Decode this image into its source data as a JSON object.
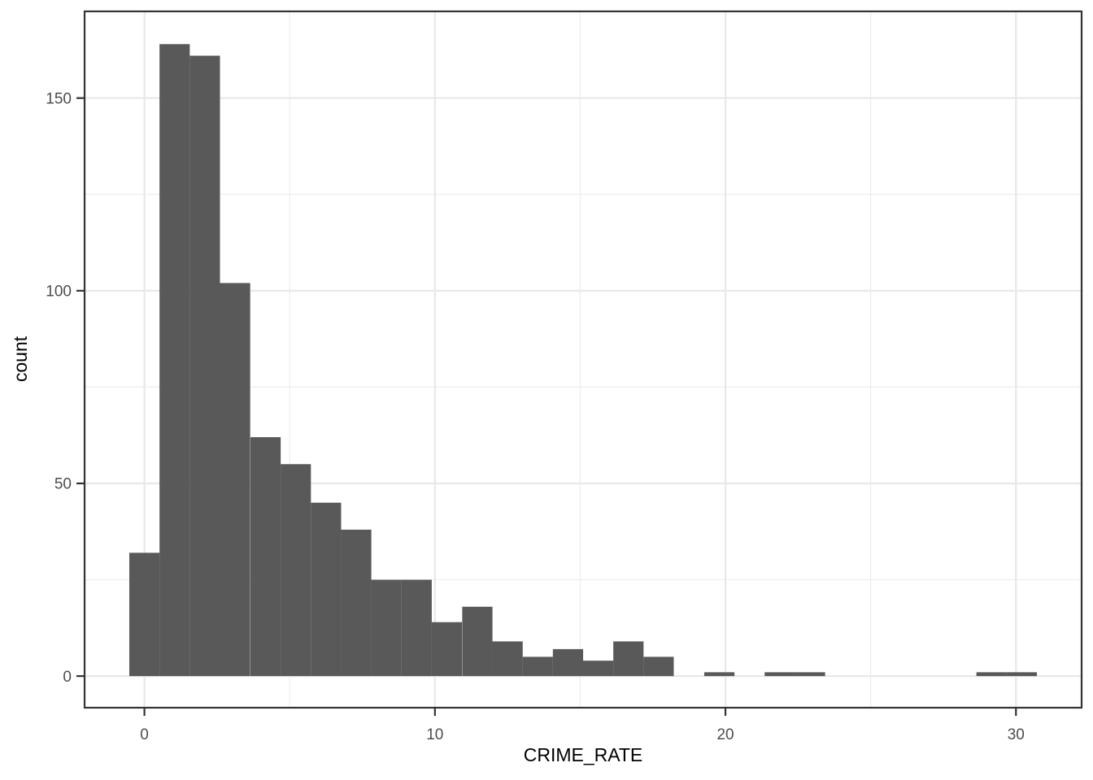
{
  "chart_data": {
    "type": "bar",
    "subtype": "histogram",
    "title": "",
    "xlabel": "CRIME_RATE",
    "ylabel": "count",
    "legend": "none",
    "grid": "major+minor",
    "bin_width": 1.0414,
    "bin_centers": [
      0.0,
      1.04,
      2.08,
      3.12,
      4.17,
      5.21,
      6.25,
      7.29,
      8.33,
      9.37,
      10.41,
      11.46,
      12.5,
      13.54,
      14.58,
      15.62,
      16.66,
      17.7,
      18.75,
      19.79,
      20.83,
      21.87,
      22.91,
      23.95,
      25.0,
      26.04,
      27.08,
      28.12,
      29.16,
      30.2
    ],
    "counts": [
      32,
      164,
      161,
      102,
      62,
      55,
      45,
      38,
      25,
      25,
      14,
      18,
      9,
      5,
      7,
      4,
      9,
      5,
      0,
      1,
      0,
      1,
      1,
      0,
      0,
      0,
      0,
      0,
      1,
      1
    ],
    "x_ticks": [
      0,
      10,
      20,
      30
    ],
    "x_tick_labels": [
      "0",
      "10",
      "20",
      "30"
    ],
    "x_minor_ticks": [
      5,
      15,
      25
    ],
    "y_ticks": [
      0,
      50,
      100,
      150
    ],
    "y_tick_labels": [
      "0",
      "50",
      "100",
      "150"
    ],
    "y_minor_ticks": [
      25,
      75,
      125
    ],
    "xlim": [
      -2.06,
      32.26
    ],
    "ylim": [
      -8.2,
      172.5
    ]
  },
  "colors": {
    "bar_fill": "#595959",
    "panel_background": "#ffffff",
    "panel_border": "#333333",
    "major_gridline": "#e8e8e8",
    "minor_gridline": "#ededed",
    "tick_mark": "#333333",
    "tick_label": "#4d4d4d",
    "axis_title": "#000000"
  }
}
